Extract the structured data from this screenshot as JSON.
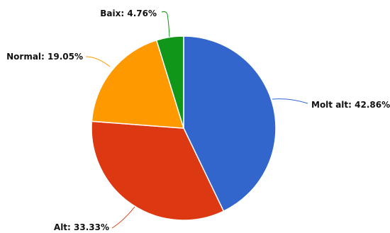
{
  "chart_data": {
    "type": "pie",
    "slices": [
      {
        "label": "Molt alt",
        "value": 42.86,
        "display": "Molt alt: 42.86%",
        "color": "#3366cc"
      },
      {
        "label": "Alt",
        "value": 33.33,
        "display": "Alt: 33.33%",
        "color": "#dc3912"
      },
      {
        "label": "Normal",
        "value": 19.05,
        "display": "Normal: 19.05%",
        "color": "#ff9900"
      },
      {
        "label": "Baix",
        "value": 4.76,
        "display": "Baix: 4.76%",
        "color": "#109618"
      }
    ]
  }
}
